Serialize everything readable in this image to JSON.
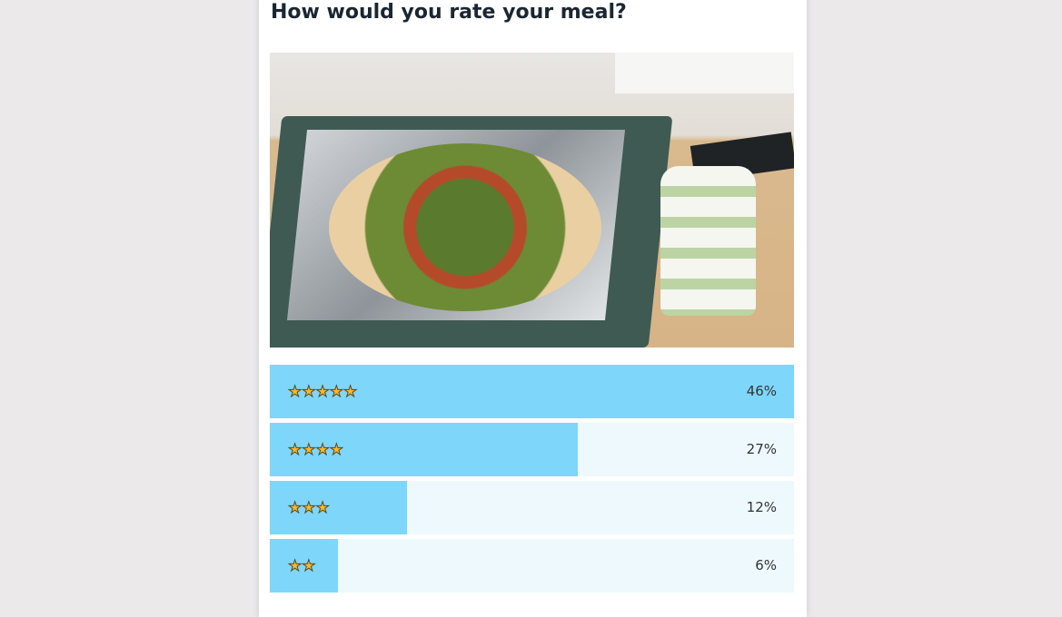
{
  "question": "How would you rate your meal?",
  "image": {
    "icon": "photo-pizza-in-box"
  },
  "colors": {
    "fill": "#7fd6fb",
    "track": "#eef9fe",
    "star": "#f5b82e"
  },
  "results": [
    {
      "stars": 5,
      "stars_text": "★★★★★",
      "percent": 46,
      "label": "46%"
    },
    {
      "stars": 4,
      "stars_text": "★★★★",
      "percent": 27,
      "label": "27%"
    },
    {
      "stars": 3,
      "stars_text": "★★★",
      "percent": 12,
      "label": "12%"
    },
    {
      "stars": 2,
      "stars_text": "★★",
      "percent": 6,
      "label": "6%"
    }
  ]
}
